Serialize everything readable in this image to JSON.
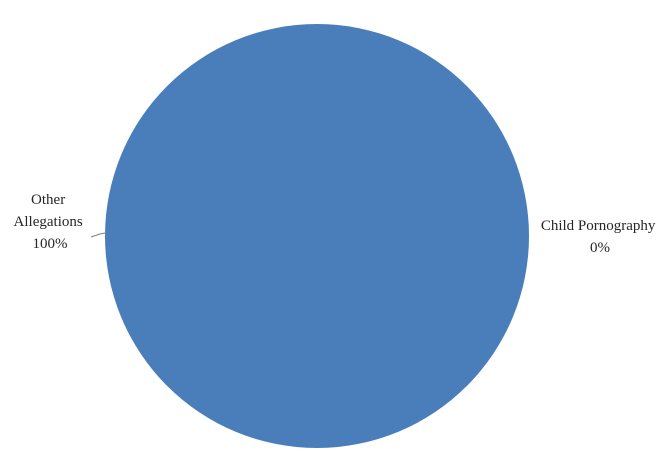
{
  "chart_data": {
    "type": "pie",
    "title": "",
    "slices": [
      {
        "label": "Other Allegations",
        "value": 100,
        "percent_label": "100%",
        "color": "#4a7ebb"
      },
      {
        "label": "Child Pornography",
        "value": 0,
        "percent_label": "0%",
        "color": "#c0504d"
      }
    ],
    "legend": "none",
    "data_labels": "outside"
  }
}
